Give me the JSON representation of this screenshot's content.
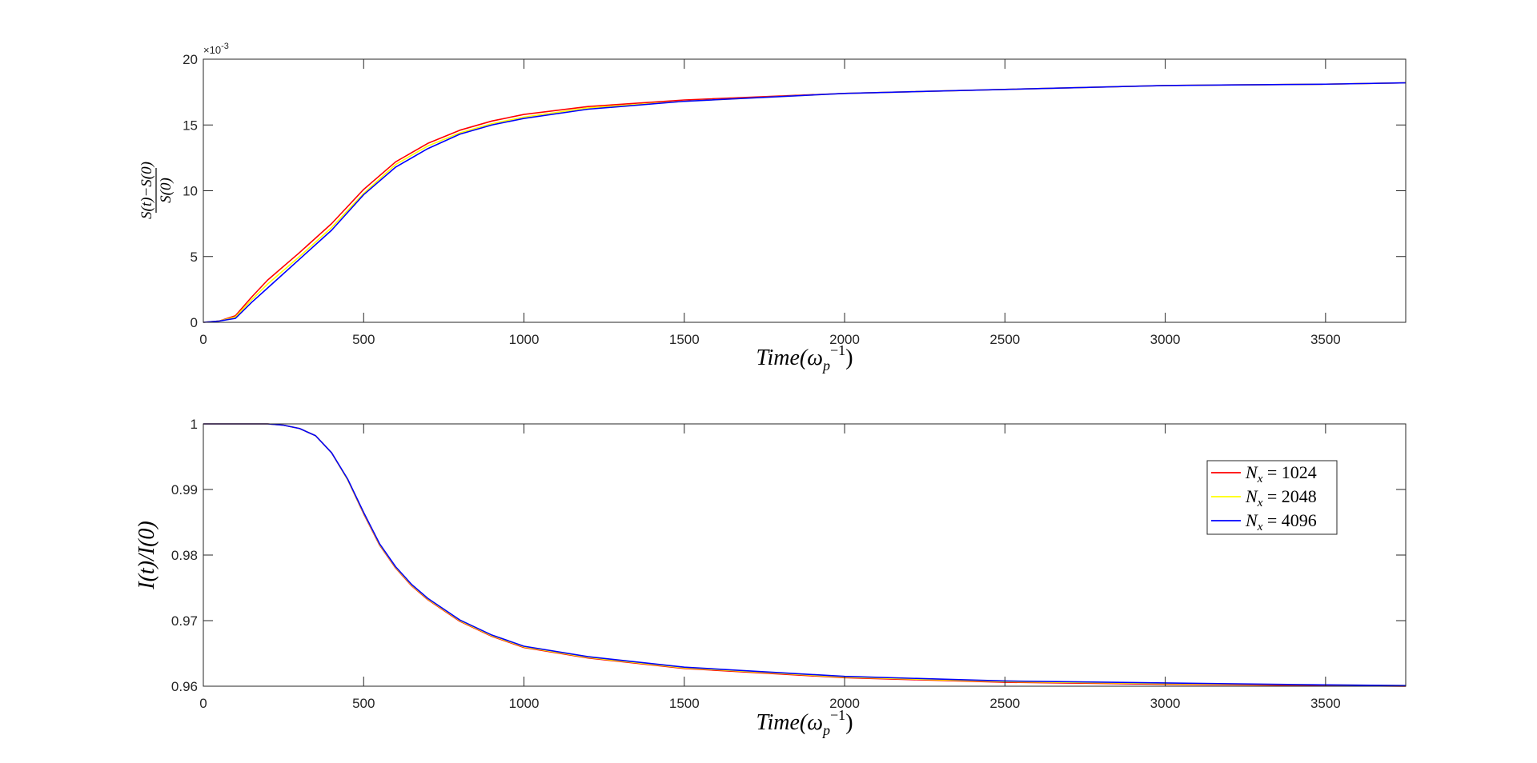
{
  "chart_data": [
    {
      "type": "line",
      "ylabel": {
        "numerator": "S(t)−S(0)",
        "denominator": "S(0)"
      },
      "xlabel": {
        "base": "Time(ω",
        "sub": "p",
        "sup": "−1",
        "close": ")"
      },
      "exponent": {
        "base": "×10",
        "power": "-3"
      },
      "xlim": [
        0,
        3750
      ],
      "ylim": [
        0,
        0.02
      ],
      "xticks": [
        "0",
        "500",
        "1000",
        "1500",
        "2000",
        "2500",
        "3000",
        "3500"
      ],
      "xtick_values": [
        0,
        500,
        1000,
        1500,
        2000,
        2500,
        3000,
        3500
      ],
      "yticks": [
        "0",
        "5",
        "10",
        "15",
        "20"
      ],
      "ytick_values": [
        0,
        0.005,
        0.01,
        0.015,
        0.02
      ],
      "grid": false,
      "series": [
        {
          "color": "#ff0000",
          "x": [
            0,
            50,
            100,
            150,
            200,
            300,
            400,
            500,
            600,
            700,
            800,
            900,
            1000,
            1200,
            1500,
            2000,
            2500,
            3000,
            3500,
            3750
          ],
          "y": [
            0,
            0.0001,
            0.0005,
            0.0019,
            0.0032,
            0.0053,
            0.0075,
            0.0101,
            0.0122,
            0.0136,
            0.0146,
            0.0153,
            0.0158,
            0.0164,
            0.0169,
            0.0174,
            0.0177,
            0.018,
            0.0181,
            0.0182
          ]
        },
        {
          "color": "#ffff00",
          "x": [
            0,
            50,
            100,
            150,
            200,
            300,
            400,
            500,
            600,
            700,
            800,
            900,
            1000,
            1200,
            1500,
            2000,
            2500,
            3000,
            3500,
            3750
          ],
          "y": [
            0,
            0.0001,
            0.0004,
            0.0017,
            0.0029,
            0.005,
            0.0072,
            0.0098,
            0.012,
            0.0134,
            0.0144,
            0.0151,
            0.0156,
            0.0163,
            0.0168,
            0.0174,
            0.0177,
            0.018,
            0.0181,
            0.0182
          ]
        },
        {
          "color": "#0000ff",
          "x": [
            0,
            50,
            100,
            150,
            200,
            300,
            400,
            500,
            600,
            700,
            800,
            900,
            1000,
            1200,
            1500,
            2000,
            2500,
            3000,
            3500,
            3750
          ],
          "y": [
            0,
            0.0001,
            0.0003,
            0.0015,
            0.0026,
            0.0048,
            0.007,
            0.0097,
            0.0118,
            0.0132,
            0.0143,
            0.015,
            0.0155,
            0.0162,
            0.0168,
            0.0174,
            0.0177,
            0.018,
            0.0181,
            0.0182
          ]
        }
      ]
    },
    {
      "type": "line",
      "ylabel": "I(t)/I(0)",
      "xlabel": {
        "base": "Time(ω",
        "sub": "p",
        "sup": "−1",
        "close": ")"
      },
      "xlim": [
        0,
        3750
      ],
      "ylim": [
        0.96,
        1.0
      ],
      "xticks": [
        "0",
        "500",
        "1000",
        "1500",
        "2000",
        "2500",
        "3000",
        "3500"
      ],
      "xtick_values": [
        0,
        500,
        1000,
        1500,
        2000,
        2500,
        3000,
        3500
      ],
      "yticks": [
        "0.96",
        "0.97",
        "0.98",
        "0.99",
        "1"
      ],
      "ytick_values": [
        0.96,
        0.97,
        0.98,
        0.99,
        1.0
      ],
      "grid": false,
      "legend_position": "top-right",
      "series": [
        {
          "name": "N_x = 1024",
          "name_main": "N",
          "name_sub": "x",
          "name_rest": " = 1024",
          "color": "#ff0000",
          "x": [
            0,
            100,
            200,
            250,
            300,
            350,
            400,
            450,
            500,
            550,
            600,
            650,
            700,
            800,
            900,
            1000,
            1200,
            1500,
            2000,
            2500,
            3000,
            3500,
            3750
          ],
          "y": [
            1.0,
            1.0,
            1.0,
            0.9998,
            0.9993,
            0.9982,
            0.9956,
            0.9915,
            0.9863,
            0.9815,
            0.978,
            0.9753,
            0.9732,
            0.9699,
            0.9676,
            0.9659,
            0.9643,
            0.9627,
            0.9613,
            0.9606,
            0.9603,
            0.9601,
            0.96
          ]
        },
        {
          "name": "N_x = 2048",
          "name_main": "N",
          "name_sub": "x",
          "name_rest": " = 2048",
          "color": "#ffff00",
          "x": [
            0,
            100,
            200,
            250,
            300,
            350,
            400,
            450,
            500,
            550,
            600,
            650,
            700,
            800,
            900,
            1000,
            1200,
            1500,
            2000,
            2500,
            3000,
            3500,
            3750
          ],
          "y": [
            1.0,
            1.0,
            1.0,
            0.9998,
            0.9993,
            0.9982,
            0.9956,
            0.9915,
            0.9864,
            0.9816,
            0.9781,
            0.9754,
            0.9733,
            0.97,
            0.9677,
            0.966,
            0.9644,
            0.9628,
            0.9614,
            0.9607,
            0.9604,
            0.9602,
            0.9601
          ]
        },
        {
          "name": "N_x = 4096",
          "name_main": "N",
          "name_sub": "x",
          "name_rest": " = 4096",
          "color": "#0000ff",
          "x": [
            0,
            100,
            200,
            250,
            300,
            350,
            400,
            450,
            500,
            550,
            600,
            650,
            700,
            800,
            900,
            1000,
            1200,
            1500,
            2000,
            2500,
            3000,
            3500,
            3750
          ],
          "y": [
            1.0,
            1.0,
            1.0,
            0.9998,
            0.9993,
            0.9982,
            0.9956,
            0.9916,
            0.9865,
            0.9817,
            0.9782,
            0.9755,
            0.9734,
            0.9701,
            0.9678,
            0.9661,
            0.9645,
            0.9629,
            0.9615,
            0.9608,
            0.9605,
            0.9602,
            0.9601
          ]
        }
      ]
    }
  ]
}
